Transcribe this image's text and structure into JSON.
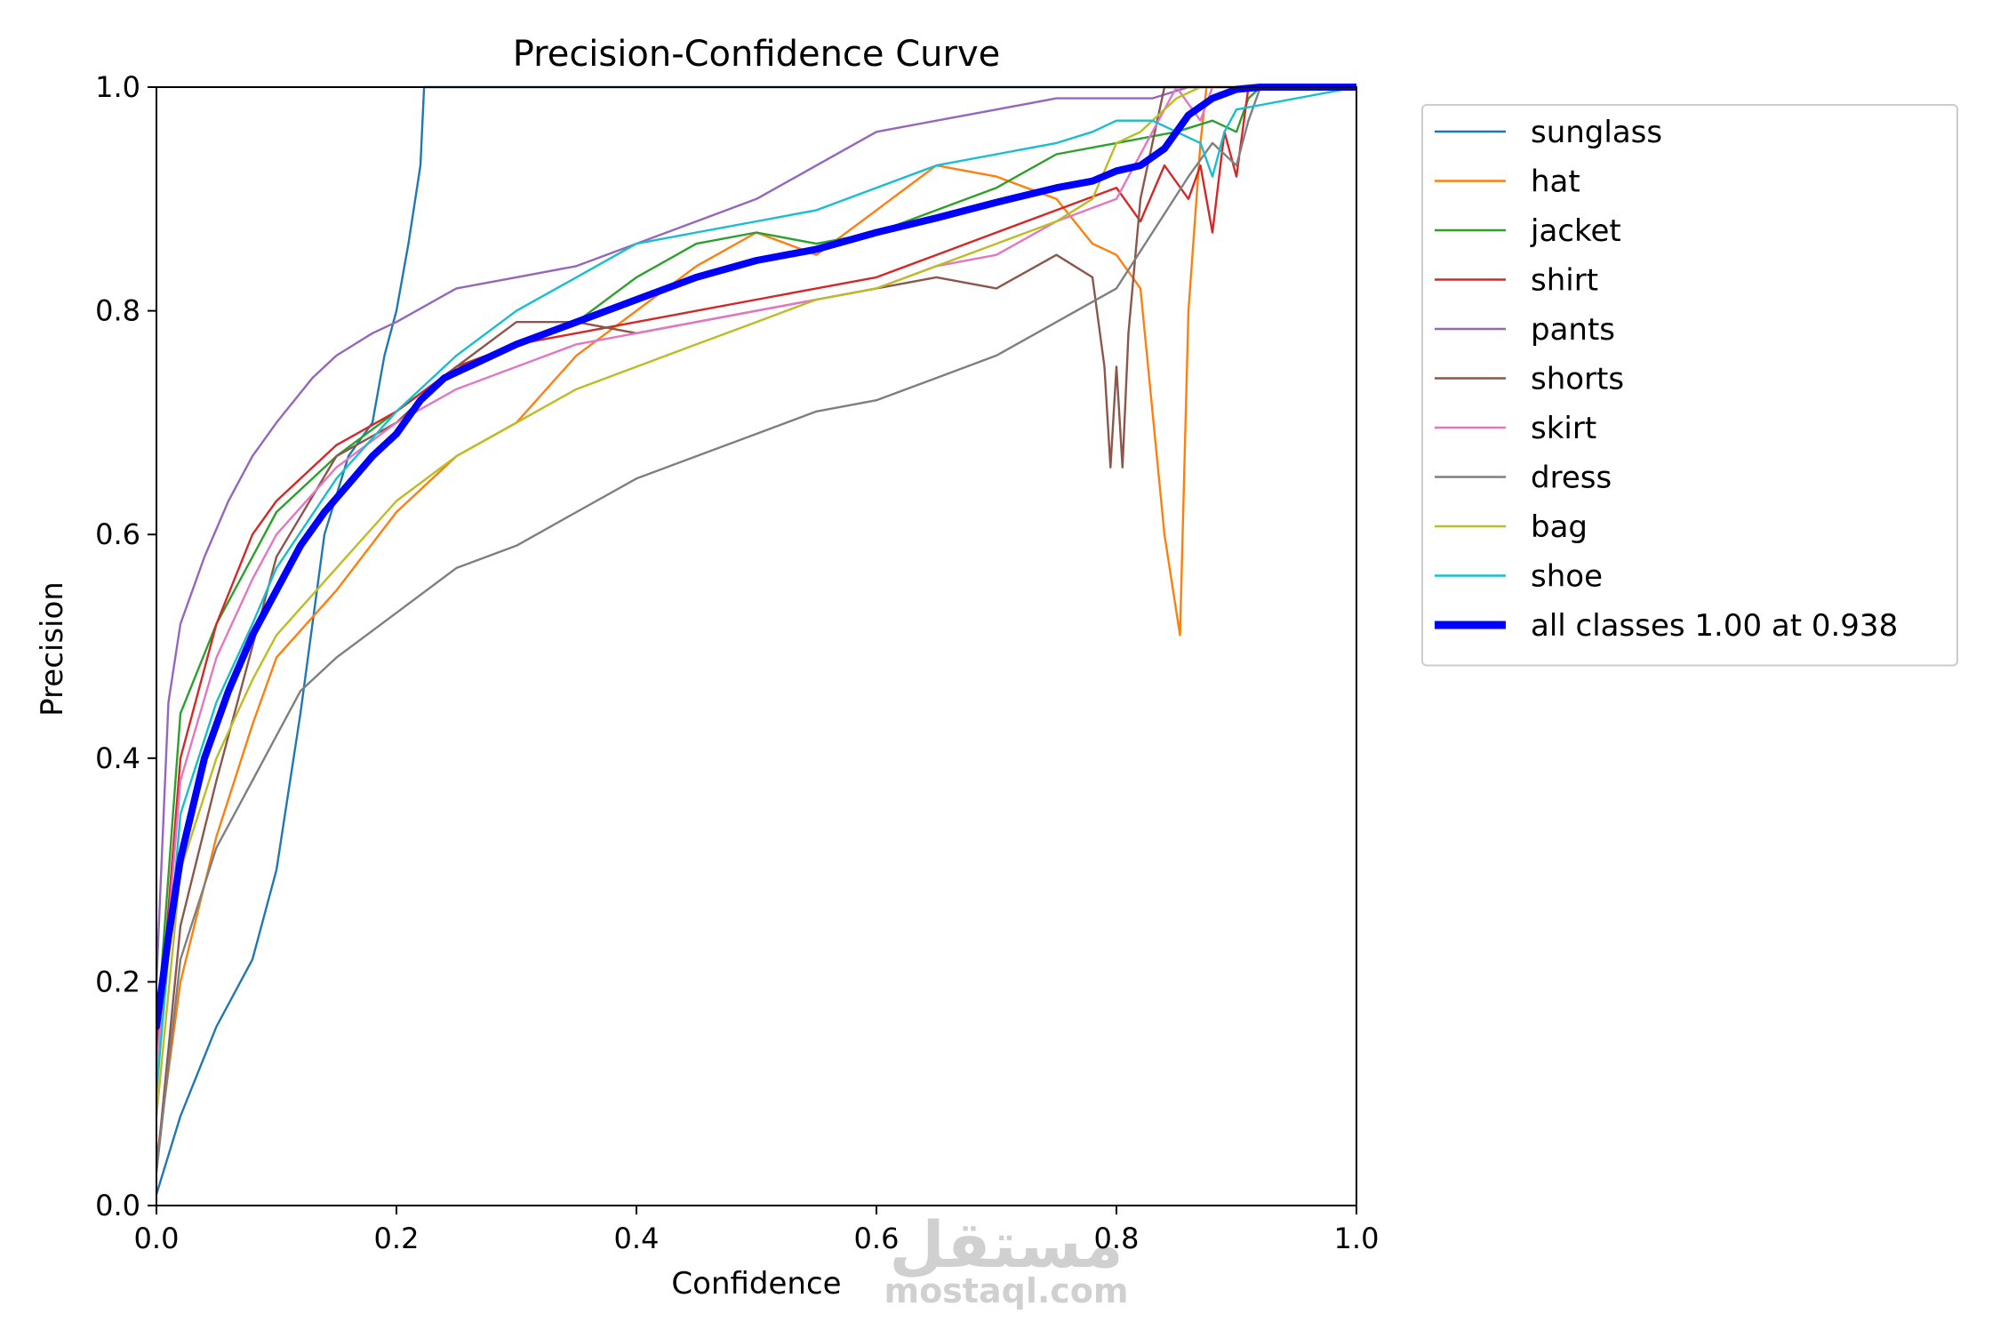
{
  "chart_data": {
    "type": "line",
    "title": "Precision-Confidence Curve",
    "xlabel": "Confidence",
    "ylabel": "Precision",
    "xlim": [
      0,
      1
    ],
    "ylim": [
      0,
      1
    ],
    "xticks": [
      "0.0",
      "0.2",
      "0.4",
      "0.6",
      "0.8",
      "1.0"
    ],
    "yticks": [
      "0.0",
      "0.2",
      "0.4",
      "0.6",
      "0.8",
      "1.0"
    ],
    "grid": false,
    "legend_position": "outside-top-right",
    "series": [
      {
        "name": "sunglass",
        "color": "#1f77b4",
        "x": [
          0,
          0.02,
          0.05,
          0.08,
          0.1,
          0.12,
          0.13,
          0.14,
          0.16,
          0.18,
          0.19,
          0.2,
          0.21,
          0.22,
          0.223,
          0.23,
          0.5,
          1.0
        ],
        "y": [
          0.01,
          0.08,
          0.16,
          0.22,
          0.3,
          0.44,
          0.52,
          0.6,
          0.67,
          0.7,
          0.76,
          0.8,
          0.86,
          0.93,
          1.0,
          1.0,
          1.0,
          1.0
        ]
      },
      {
        "name": "hat",
        "color": "#ff7f0e",
        "x": [
          0,
          0.02,
          0.05,
          0.08,
          0.1,
          0.15,
          0.2,
          0.25,
          0.3,
          0.35,
          0.4,
          0.45,
          0.5,
          0.55,
          0.6,
          0.65,
          0.7,
          0.75,
          0.78,
          0.8,
          0.82,
          0.84,
          0.853,
          0.86,
          0.87,
          0.875,
          1.0
        ],
        "y": [
          0.04,
          0.2,
          0.33,
          0.43,
          0.49,
          0.55,
          0.62,
          0.67,
          0.7,
          0.76,
          0.8,
          0.84,
          0.87,
          0.85,
          0.89,
          0.93,
          0.92,
          0.9,
          0.86,
          0.85,
          0.82,
          0.6,
          0.51,
          0.8,
          0.95,
          1.0,
          1.0
        ]
      },
      {
        "name": "jacket",
        "color": "#2ca02c",
        "x": [
          0,
          0.02,
          0.05,
          0.08,
          0.1,
          0.15,
          0.2,
          0.25,
          0.3,
          0.35,
          0.4,
          0.45,
          0.5,
          0.55,
          0.6,
          0.65,
          0.7,
          0.75,
          0.8,
          0.85,
          0.88,
          0.9,
          0.91,
          0.92,
          1.0
        ],
        "y": [
          0.15,
          0.44,
          0.52,
          0.58,
          0.62,
          0.67,
          0.71,
          0.75,
          0.77,
          0.79,
          0.83,
          0.86,
          0.87,
          0.86,
          0.87,
          0.89,
          0.91,
          0.94,
          0.95,
          0.96,
          0.97,
          0.96,
          0.99,
          1.0,
          1.0
        ]
      },
      {
        "name": "shirt",
        "color": "#d62728",
        "x": [
          0,
          0.02,
          0.05,
          0.08,
          0.1,
          0.15,
          0.2,
          0.25,
          0.3,
          0.35,
          0.4,
          0.45,
          0.5,
          0.55,
          0.6,
          0.65,
          0.7,
          0.75,
          0.8,
          0.82,
          0.84,
          0.86,
          0.87,
          0.88,
          0.89,
          0.9,
          0.91,
          1.0
        ],
        "y": [
          0.13,
          0.4,
          0.52,
          0.6,
          0.63,
          0.68,
          0.71,
          0.75,
          0.77,
          0.78,
          0.79,
          0.8,
          0.81,
          0.82,
          0.83,
          0.85,
          0.87,
          0.89,
          0.91,
          0.88,
          0.93,
          0.9,
          0.93,
          0.87,
          0.96,
          0.92,
          1.0,
          1.0
        ]
      },
      {
        "name": "pants",
        "color": "#9467bd",
        "x": [
          0,
          0.01,
          0.02,
          0.04,
          0.06,
          0.08,
          0.1,
          0.13,
          0.15,
          0.18,
          0.2,
          0.25,
          0.3,
          0.35,
          0.4,
          0.45,
          0.5,
          0.55,
          0.6,
          0.65,
          0.7,
          0.75,
          0.8,
          0.83,
          0.86,
          1.0
        ],
        "y": [
          0.2,
          0.45,
          0.52,
          0.58,
          0.63,
          0.67,
          0.7,
          0.74,
          0.76,
          0.78,
          0.79,
          0.82,
          0.83,
          0.84,
          0.86,
          0.88,
          0.9,
          0.93,
          0.96,
          0.97,
          0.98,
          0.99,
          0.99,
          0.99,
          1.0,
          1.0
        ]
      },
      {
        "name": "shorts",
        "color": "#8c564b",
        "x": [
          0,
          0.02,
          0.05,
          0.08,
          0.1,
          0.15,
          0.2,
          0.25,
          0.3,
          0.35,
          0.4,
          0.45,
          0.5,
          0.55,
          0.6,
          0.65,
          0.7,
          0.75,
          0.78,
          0.79,
          0.795,
          0.8,
          0.805,
          0.81,
          0.82,
          0.84,
          0.87,
          0.9,
          0.92,
          1.0
        ],
        "y": [
          0.03,
          0.25,
          0.38,
          0.5,
          0.58,
          0.67,
          0.7,
          0.75,
          0.79,
          0.79,
          0.78,
          0.79,
          0.8,
          0.81,
          0.82,
          0.83,
          0.82,
          0.85,
          0.83,
          0.75,
          0.66,
          0.75,
          0.66,
          0.78,
          0.9,
          1.0,
          1.0,
          1.0,
          1.0,
          1.0
        ]
      },
      {
        "name": "skirt",
        "color": "#e377c2",
        "x": [
          0,
          0.02,
          0.05,
          0.08,
          0.1,
          0.15,
          0.2,
          0.25,
          0.3,
          0.35,
          0.4,
          0.45,
          0.5,
          0.55,
          0.6,
          0.65,
          0.7,
          0.75,
          0.8,
          0.83,
          0.85,
          0.87,
          0.88,
          0.9,
          1.0
        ],
        "y": [
          0.12,
          0.38,
          0.49,
          0.56,
          0.6,
          0.66,
          0.7,
          0.73,
          0.75,
          0.77,
          0.78,
          0.79,
          0.8,
          0.81,
          0.82,
          0.84,
          0.85,
          0.88,
          0.9,
          0.96,
          1.0,
          0.97,
          1.0,
          1.0,
          1.0
        ]
      },
      {
        "name": "dress",
        "color": "#7f7f7f",
        "x": [
          0,
          0.02,
          0.05,
          0.08,
          0.1,
          0.12,
          0.15,
          0.2,
          0.25,
          0.3,
          0.35,
          0.4,
          0.45,
          0.5,
          0.55,
          0.6,
          0.65,
          0.7,
          0.75,
          0.8,
          0.83,
          0.86,
          0.88,
          0.9,
          0.91,
          0.92,
          1.0
        ],
        "y": [
          0.03,
          0.22,
          0.32,
          0.38,
          0.42,
          0.46,
          0.49,
          0.53,
          0.57,
          0.59,
          0.62,
          0.65,
          0.67,
          0.69,
          0.71,
          0.72,
          0.74,
          0.76,
          0.79,
          0.82,
          0.87,
          0.92,
          0.95,
          0.93,
          0.97,
          1.0,
          1.0
        ]
      },
      {
        "name": "bag",
        "color": "#bcbd22",
        "x": [
          0,
          0.02,
          0.05,
          0.08,
          0.1,
          0.15,
          0.2,
          0.25,
          0.3,
          0.35,
          0.4,
          0.45,
          0.5,
          0.55,
          0.6,
          0.65,
          0.7,
          0.75,
          0.78,
          0.8,
          0.82,
          0.85,
          0.87,
          0.9,
          1.0
        ],
        "y": [
          0.08,
          0.3,
          0.4,
          0.47,
          0.51,
          0.57,
          0.63,
          0.67,
          0.7,
          0.73,
          0.75,
          0.77,
          0.79,
          0.81,
          0.82,
          0.84,
          0.86,
          0.88,
          0.9,
          0.95,
          0.96,
          0.99,
          1.0,
          1.0,
          1.0
        ]
      },
      {
        "name": "shoe",
        "color": "#17becf",
        "x": [
          0,
          0.02,
          0.05,
          0.08,
          0.1,
          0.15,
          0.2,
          0.25,
          0.3,
          0.35,
          0.4,
          0.45,
          0.5,
          0.55,
          0.6,
          0.65,
          0.7,
          0.75,
          0.78,
          0.8,
          0.83,
          0.85,
          0.87,
          0.88,
          0.89,
          0.9,
          1.0
        ],
        "y": [
          0.1,
          0.35,
          0.45,
          0.52,
          0.57,
          0.65,
          0.71,
          0.76,
          0.8,
          0.83,
          0.86,
          0.87,
          0.88,
          0.89,
          0.91,
          0.93,
          0.94,
          0.95,
          0.96,
          0.97,
          0.97,
          0.96,
          0.95,
          0.92,
          0.96,
          0.98,
          1.0
        ]
      },
      {
        "name": "all classes 1.00 at 0.938",
        "color": "#0000ff",
        "bold": true,
        "x": [
          0,
          0.01,
          0.02,
          0.04,
          0.06,
          0.08,
          0.1,
          0.12,
          0.14,
          0.16,
          0.18,
          0.2,
          0.22,
          0.24,
          0.26,
          0.3,
          0.35,
          0.4,
          0.45,
          0.5,
          0.55,
          0.6,
          0.65,
          0.7,
          0.75,
          0.78,
          0.8,
          0.82,
          0.84,
          0.86,
          0.88,
          0.9,
          0.92,
          0.938,
          1.0
        ],
        "y": [
          0.16,
          0.24,
          0.31,
          0.4,
          0.46,
          0.51,
          0.55,
          0.59,
          0.62,
          0.645,
          0.67,
          0.69,
          0.72,
          0.74,
          0.75,
          0.77,
          0.79,
          0.81,
          0.83,
          0.845,
          0.855,
          0.87,
          0.883,
          0.897,
          0.91,
          0.916,
          0.925,
          0.93,
          0.945,
          0.975,
          0.99,
          0.998,
          1.0,
          1.0,
          1.0
        ]
      }
    ]
  },
  "watermark": {
    "line1": "مستقل",
    "line2": "mostaql.com"
  }
}
